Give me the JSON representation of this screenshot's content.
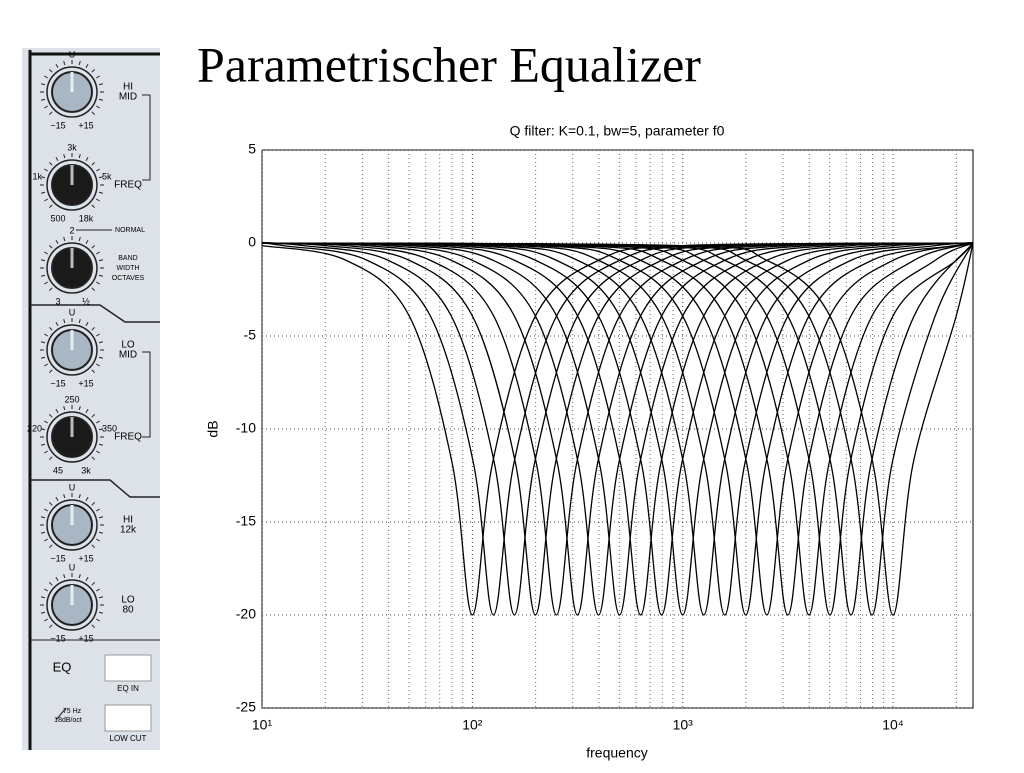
{
  "title": "Parametrischer Equalizer",
  "panel": {
    "knobs": [
      {
        "top": "U",
        "bottom_left": "−15",
        "bottom_right": "+15",
        "label": [
          "HI",
          "MID"
        ],
        "black": false
      },
      {
        "top": "3k",
        "left": "1k",
        "right": "5k",
        "bottom_left": "500",
        "bottom_right": "18k",
        "label": [
          "FREQ"
        ],
        "black": true
      },
      {
        "top": "2",
        "bottom_left": "3",
        "bottom_right": "½",
        "label": [
          "BAND",
          "WIDTH",
          "OCTAVES"
        ],
        "note": "NORMAL",
        "black": true
      },
      {
        "top": "U",
        "bottom_left": "−15",
        "bottom_right": "+15",
        "label": [
          "LO",
          "MID"
        ],
        "black": false
      },
      {
        "top": "250",
        "left": "220",
        "right": "350",
        "bottom_left": "45",
        "bottom_right": "3k",
        "label": [
          "FREQ"
        ],
        "black": true
      },
      {
        "top": "U",
        "bottom_left": "−15",
        "bottom_right": "+15",
        "label": [
          "HI",
          "12k"
        ],
        "black": false
      },
      {
        "top": "U",
        "bottom_left": "−15",
        "bottom_right": "+15",
        "label": [
          "LO",
          "80"
        ],
        "black": false
      }
    ],
    "eq": "EQ",
    "eq_in": "EQ IN",
    "cut_freq": "75 Hz",
    "cut_slope": "18dB/oct",
    "low_cut": "LOW CUT"
  },
  "chart_data": {
    "type": "line",
    "title": "Q filter: K=0.1, bw=5, parameter f0",
    "xlabel": "frequency",
    "ylabel": "dB",
    "xscale": "log",
    "grid": true,
    "color": "#000000",
    "xlim": [
      10,
      24000
    ],
    "ylim": [
      -25,
      5
    ],
    "xticks": [
      {
        "value": 10,
        "label": "10¹"
      },
      {
        "value": 100,
        "label": "10²"
      },
      {
        "value": 1000,
        "label": "10³"
      },
      {
        "value": 10000,
        "label": "10⁴"
      }
    ],
    "xminorticks": [
      20,
      30,
      40,
      50,
      60,
      70,
      80,
      90,
      200,
      300,
      400,
      500,
      600,
      700,
      800,
      900,
      2000,
      3000,
      4000,
      5000,
      6000,
      7000,
      8000,
      9000,
      20000
    ],
    "yticks": [
      -25,
      -20,
      -15,
      -10,
      -5,
      0,
      5
    ],
    "series": [
      {
        "x": [
          10,
          25,
          50,
          80,
          100,
          125,
          200,
          400,
          1000,
          24000
        ],
        "values": [
          -0.14,
          -0.92,
          -3.9,
          -11.78,
          -20,
          -11.78,
          -3.9,
          -0.92,
          -0.14,
          0
        ]
      },
      {
        "x": [
          10,
          12.6,
          31.5,
          63,
          101,
          126,
          158,
          252,
          504,
          1260,
          24000
        ],
        "values": [
          0,
          -0.14,
          -0.92,
          -3.9,
          -11.78,
          -20,
          -11.78,
          -3.9,
          -0.92,
          -0.14,
          0
        ]
      },
      {
        "x": [
          10,
          15.8,
          39.6,
          79.2,
          127,
          158.5,
          198,
          317,
          634,
          1585,
          24000
        ],
        "values": [
          0,
          -0.14,
          -0.92,
          -3.9,
          -11.78,
          -20,
          -11.78,
          -3.9,
          -0.92,
          -0.14,
          0
        ]
      },
      {
        "x": [
          10,
          20,
          49.9,
          99.8,
          160,
          199.5,
          249,
          399,
          798,
          1995,
          24000
        ],
        "values": [
          0,
          -0.14,
          -0.92,
          -3.9,
          -11.78,
          -20,
          -11.78,
          -3.9,
          -0.92,
          -0.14,
          0
        ]
      },
      {
        "x": [
          10,
          25.1,
          62.8,
          126,
          201,
          251,
          314,
          502,
          1005,
          2512,
          24000
        ],
        "values": [
          0,
          -0.14,
          -0.92,
          -3.9,
          -11.78,
          -20,
          -11.78,
          -3.9,
          -0.92,
          -0.14,
          0
        ]
      },
      {
        "x": [
          10,
          31.6,
          79.1,
          158,
          253,
          316,
          395,
          632,
          1265,
          3162,
          24000
        ],
        "values": [
          0,
          -0.14,
          -0.92,
          -3.9,
          -11.78,
          -20,
          -11.78,
          -3.9,
          -0.92,
          -0.14,
          0
        ]
      },
      {
        "x": [
          10,
          39.8,
          99.5,
          199,
          318,
          398,
          498,
          796,
          1592,
          3981,
          24000
        ],
        "values": [
          0,
          -0.14,
          -0.92,
          -3.9,
          -11.78,
          -20,
          -11.78,
          -3.9,
          -0.92,
          -0.14,
          0
        ]
      },
      {
        "x": [
          10,
          50.1,
          125,
          251,
          401,
          501,
          627,
          1002,
          2005,
          5012,
          24000
        ],
        "values": [
          0,
          -0.14,
          -0.92,
          -3.9,
          -11.78,
          -20,
          -11.78,
          -3.9,
          -0.92,
          -0.14,
          0
        ]
      },
      {
        "x": [
          10,
          63.1,
          158,
          316,
          505,
          631,
          789,
          1262,
          2524,
          6310,
          24000
        ],
        "values": [
          0,
          -0.14,
          -0.92,
          -3.9,
          -11.78,
          -20,
          -11.78,
          -3.9,
          -0.92,
          -0.14,
          0
        ]
      },
      {
        "x": [
          10,
          79.4,
          199,
          397,
          635,
          794,
          993,
          1589,
          3177,
          7943,
          24000
        ],
        "values": [
          0,
          -0.14,
          -0.92,
          -3.9,
          -11.78,
          -20,
          -11.78,
          -3.9,
          -0.92,
          -0.14,
          0
        ]
      },
      {
        "x": [
          10,
          100,
          250,
          500,
          800,
          1000,
          1250,
          2000,
          4000,
          10000,
          24000
        ],
        "values": [
          0,
          -0.14,
          -0.92,
          -3.9,
          -11.78,
          -20,
          -11.78,
          -3.9,
          -0.92,
          -0.14,
          0
        ]
      },
      {
        "x": [
          10,
          126,
          315,
          629,
          1007,
          1259,
          1574,
          2518,
          5036,
          12590,
          24000
        ],
        "values": [
          0,
          -0.14,
          -0.92,
          -3.9,
          -11.78,
          -20,
          -11.78,
          -3.9,
          -0.92,
          -0.14,
          0
        ]
      },
      {
        "x": [
          10,
          158,
          396,
          792,
          1268,
          1585,
          1981,
          3170,
          6340,
          15850,
          24000
        ],
        "values": [
          0,
          -0.14,
          -0.92,
          -3.9,
          -11.78,
          -20,
          -11.78,
          -3.9,
          -0.92,
          -0.14,
          0
        ]
      },
      {
        "x": [
          10,
          200,
          499,
          998,
          1596,
          1995,
          2494,
          3990,
          7980,
          19950,
          24000
        ],
        "values": [
          0,
          -0.14,
          -0.92,
          -3.9,
          -11.78,
          -20,
          -11.78,
          -3.9,
          -0.92,
          -0.14,
          0
        ]
      },
      {
        "x": [
          10,
          251,
          628,
          1256,
          2010,
          2512,
          3140,
          5024,
          10050,
          24000
        ],
        "values": [
          0,
          -0.14,
          -0.92,
          -3.9,
          -11.78,
          -20,
          -11.78,
          -3.9,
          -0.92,
          0
        ]
      },
      {
        "x": [
          10,
          316,
          791,
          1581,
          2530,
          3162,
          3953,
          6324,
          12650,
          24000
        ],
        "values": [
          0,
          -0.14,
          -0.92,
          -3.9,
          -11.78,
          -20,
          -11.78,
          -3.9,
          -0.92,
          0
        ]
      },
      {
        "x": [
          10,
          398,
          995,
          1991,
          3185,
          3981,
          4976,
          7962,
          15920,
          24000
        ],
        "values": [
          0,
          -0.14,
          -0.92,
          -3.9,
          -11.78,
          -20,
          -11.78,
          -3.9,
          -0.92,
          0
        ]
      },
      {
        "x": [
          10,
          501,
          1253,
          2506,
          4010,
          5012,
          6265,
          10020,
          20050,
          24000
        ],
        "values": [
          0,
          -0.14,
          -0.92,
          -3.9,
          -11.78,
          -20,
          -11.78,
          -3.9,
          -0.92,
          0
        ]
      },
      {
        "x": [
          10,
          631,
          1578,
          3155,
          5048,
          6310,
          7888,
          12620,
          24000
        ],
        "values": [
          0,
          -0.14,
          -0.92,
          -3.9,
          -11.78,
          -20,
          -11.78,
          -3.9,
          0
        ]
      },
      {
        "x": [
          10,
          794,
          1986,
          3972,
          6354,
          7943,
          9929,
          15890,
          24000
        ],
        "values": [
          0,
          -0.14,
          -0.92,
          -3.9,
          -11.78,
          -20,
          -11.78,
          -3.9,
          0
        ]
      },
      {
        "x": [
          10,
          1000,
          2500,
          5000,
          8000,
          10000,
          12500,
          20000,
          24000
        ],
        "values": [
          0,
          -0.14,
          -0.92,
          -3.9,
          -11.78,
          -20,
          -11.78,
          -3.9,
          0
        ]
      }
    ]
  }
}
